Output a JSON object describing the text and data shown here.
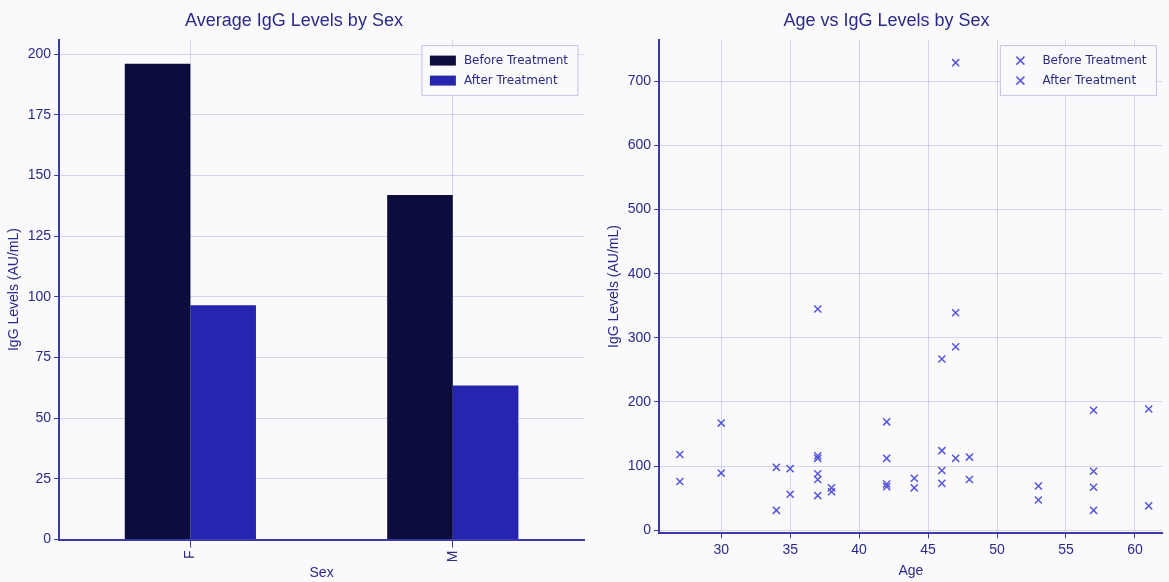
{
  "chart_data": [
    {
      "type": "bar",
      "title": "Average IgG Levels by Sex",
      "xlabel": "Sex",
      "ylabel": "IgG Levels (AU/mL)",
      "categories": [
        "F",
        "M"
      ],
      "series": [
        {
          "name": "Before Treatment",
          "color": "#0d0d3d",
          "values": [
            196,
            142
          ]
        },
        {
          "name": "After Treatment",
          "color": "#2525b0",
          "values": [
            96.5,
            63.5
          ]
        }
      ],
      "ylim": [
        0,
        206
      ],
      "yticks": [
        0,
        25,
        50,
        75,
        100,
        125,
        150,
        175,
        200
      ],
      "grid": true,
      "legend": "top right"
    },
    {
      "type": "scatter",
      "title": "Age vs IgG Levels by Sex",
      "xlabel": "Age",
      "ylabel": "IgG Levels (AU/mL)",
      "marker": "cross",
      "series": [
        {
          "name": "Before Treatment",
          "color": "#5555dd",
          "x": [
            27,
            30,
            34,
            35,
            37,
            37,
            37,
            38,
            42,
            42,
            44,
            46,
            46,
            47,
            47,
            48,
            53,
            57,
            57,
            61
          ],
          "values": [
            118,
            167,
            98,
            96,
            345,
            116,
            88,
            66,
            169,
            112,
            81,
            267,
            124,
            729,
            339,
            114,
            69,
            187,
            92,
            189
          ]
        },
        {
          "name": "After Treatment",
          "color": "#5555dd",
          "x": [
            27,
            30,
            34,
            35,
            37,
            37,
            37,
            38,
            42,
            42,
            44,
            46,
            46,
            47,
            47,
            48,
            53,
            57,
            57,
            61
          ],
          "values": [
            76,
            89,
            31,
            56,
            112,
            79,
            54,
            60,
            72,
            68,
            66,
            93,
            73,
            286,
            112,
            79,
            47,
            67,
            31,
            38
          ]
        }
      ],
      "xlim": [
        25.5,
        62
      ],
      "xticks": [
        30,
        35,
        40,
        45,
        50,
        55,
        60
      ],
      "ylim": [
        -5,
        765
      ],
      "yticks": [
        0,
        100,
        200,
        300,
        400,
        500,
        600,
        700
      ],
      "grid": true,
      "legend": "top right"
    }
  ]
}
